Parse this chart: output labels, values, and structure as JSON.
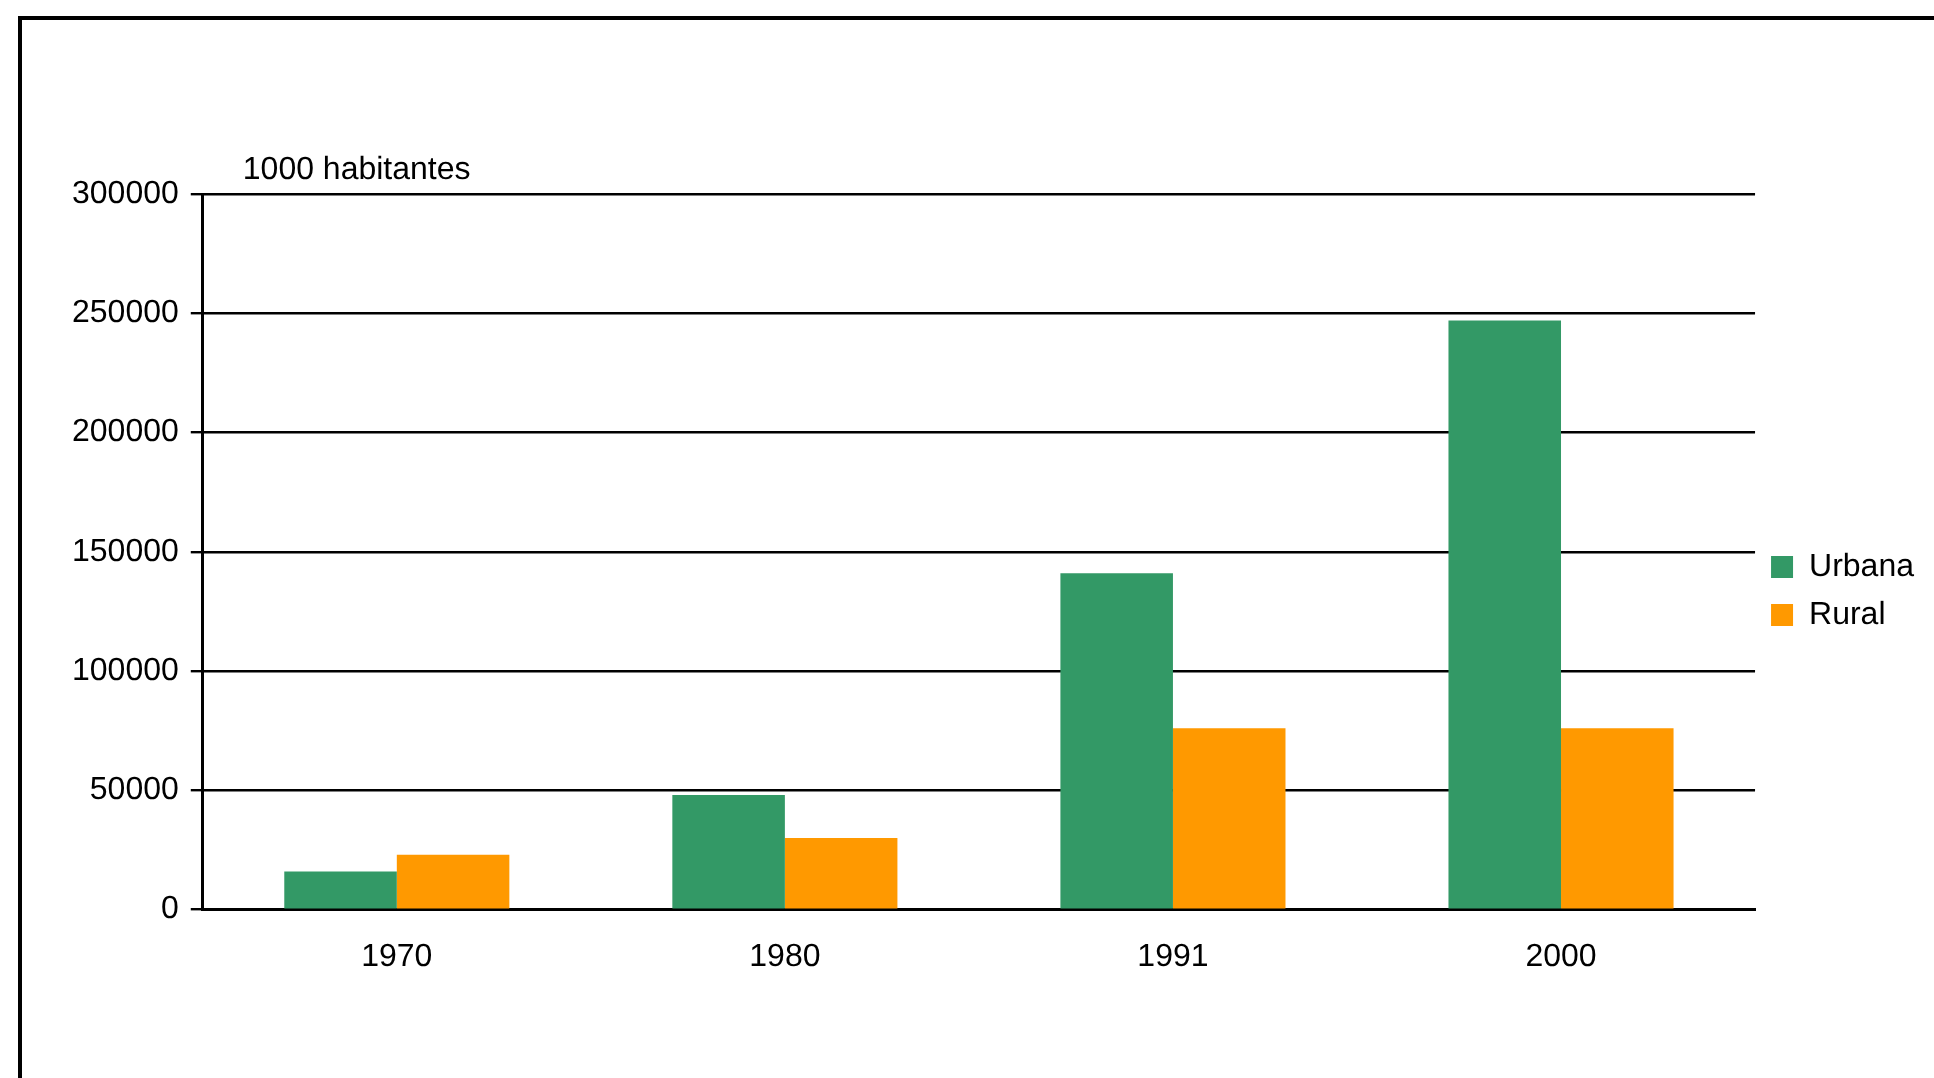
{
  "chart_data": {
    "type": "bar",
    "ylabel": "1000 habitantes",
    "categories": [
      "1970",
      "1980",
      "1991",
      "2000"
    ],
    "series": [
      {
        "name": "Urbana",
        "color": "#339966",
        "values": [
          16000,
          48000,
          141000,
          247000
        ]
      },
      {
        "name": "Rural",
        "color": "#ff9900",
        "values": [
          23000,
          30000,
          76000,
          76000
        ]
      }
    ],
    "ylim": [
      0,
      300000
    ],
    "yticks": [
      0,
      50000,
      100000,
      150000,
      200000,
      250000,
      300000
    ],
    "grid": "y",
    "legend": "right"
  }
}
